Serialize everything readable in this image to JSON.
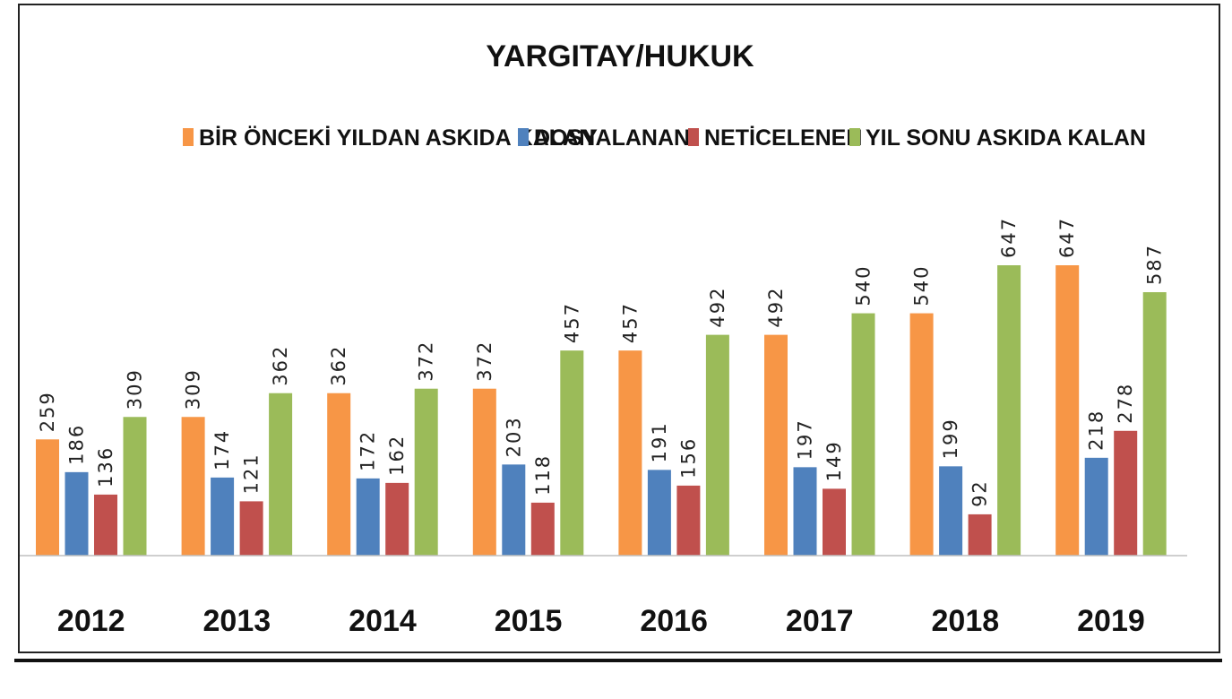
{
  "chart_data": {
    "type": "bar",
    "title": "YARGITAY/HUKUK",
    "categories": [
      "2012",
      "2013",
      "2014",
      "2015",
      "2016",
      "2017",
      "2018",
      "2019"
    ],
    "series": [
      {
        "name": "BİR ÖNCEKİ YILDAN ASKIDA KALAN",
        "color": "#F79646",
        "values": [
          259,
          309,
          362,
          372,
          457,
          492,
          540,
          647
        ]
      },
      {
        "name": "DOSYALANAN",
        "color": "#4F81BD",
        "values": [
          186,
          174,
          172,
          203,
          191,
          197,
          199,
          218
        ]
      },
      {
        "name": "NETİCELENEN",
        "color": "#C0504D",
        "values": [
          136,
          121,
          162,
          118,
          156,
          149,
          92,
          278
        ]
      },
      {
        "name": "YIL SONU ASKIDA KALAN",
        "color": "#9BBB59",
        "values": [
          309,
          362,
          372,
          457,
          492,
          540,
          647,
          587
        ]
      }
    ],
    "ylim": [
      0,
      647
    ],
    "legend": "top",
    "grid": false,
    "data_labels": "vertical"
  }
}
